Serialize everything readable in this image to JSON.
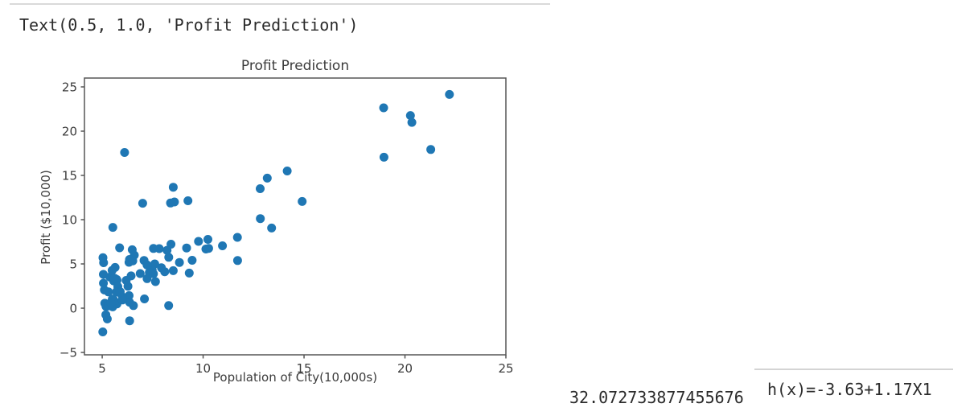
{
  "notebook": {
    "output_text": "Text(0.5, 1.0, 'Profit Prediction')",
    "cost_value": "32.072733877455676",
    "hypothesis_text": "h(x)=-3.63+1.17X1"
  },
  "chart_data": {
    "type": "scatter",
    "title": "Profit Prediction",
    "xlabel": "Population of City(10,000s)",
    "ylabel": "Profit ($10,000)",
    "xlim": [
      4.12,
      25.0
    ],
    "ylim": [
      -5.27,
      26.0
    ],
    "xticks": [
      5,
      10,
      15,
      20,
      25
    ],
    "yticks": [
      25,
      20,
      15,
      10,
      5,
      0,
      -5
    ],
    "grid": false,
    "legend": null,
    "marker_color": "#1f77b4",
    "marker_radius": 5.5,
    "spine_color": "#565656",
    "points": [
      [
        6.1101,
        17.592
      ],
      [
        5.5277,
        9.1302
      ],
      [
        8.5186,
        13.662
      ],
      [
        7.0032,
        11.854
      ],
      [
        5.8598,
        6.8233
      ],
      [
        8.3829,
        11.886
      ],
      [
        7.4764,
        4.3483
      ],
      [
        8.5781,
        12.0
      ],
      [
        6.4862,
        6.5987
      ],
      [
        5.0546,
        3.8166
      ],
      [
        5.7107,
        3.2522
      ],
      [
        14.164,
        15.505
      ],
      [
        5.734,
        3.1551
      ],
      [
        8.4084,
        7.2258
      ],
      [
        5.6407,
        0.71618
      ],
      [
        5.3794,
        3.5129
      ],
      [
        6.3654,
        5.3048
      ],
      [
        5.1301,
        0.56077
      ],
      [
        6.4296,
        3.6518
      ],
      [
        7.0708,
        5.3893
      ],
      [
        6.1891,
        3.1386
      ],
      [
        20.27,
        21.767
      ],
      [
        5.4901,
        4.263
      ],
      [
        6.3261,
        5.1875
      ],
      [
        5.5649,
        3.0825
      ],
      [
        18.945,
        22.638
      ],
      [
        12.828,
        13.501
      ],
      [
        10.957,
        7.0467
      ],
      [
        13.176,
        14.692
      ],
      [
        22.203,
        24.147
      ],
      [
        5.2524,
        -1.22
      ],
      [
        6.5894,
        5.9966
      ],
      [
        9.2482,
        12.134
      ],
      [
        5.8918,
        1.8495
      ],
      [
        8.2111,
        6.5426
      ],
      [
        7.9334,
        4.5623
      ],
      [
        8.0959,
        4.1164
      ],
      [
        5.6063,
        3.3928
      ],
      [
        12.836,
        10.117
      ],
      [
        6.3534,
        5.4974
      ],
      [
        5.4069,
        0.55657
      ],
      [
        6.8825,
        3.9115
      ],
      [
        11.708,
        5.3854
      ],
      [
        5.7737,
        2.4406
      ],
      [
        7.8247,
        6.7318
      ],
      [
        7.0931,
        1.0463
      ],
      [
        5.0702,
        5.1337
      ],
      [
        5.8014,
        1.844
      ],
      [
        11.7,
        8.0043
      ],
      [
        5.5416,
        1.0179
      ],
      [
        7.5402,
        6.7504
      ],
      [
        5.3077,
        1.8396
      ],
      [
        7.4239,
        4.2885
      ],
      [
        7.6031,
        4.9981
      ],
      [
        6.3328,
        1.4233
      ],
      [
        6.3589,
        -1.4211
      ],
      [
        6.2742,
        2.4756
      ],
      [
        5.6397,
        4.6042
      ],
      [
        9.3102,
        3.9624
      ],
      [
        9.4536,
        5.4141
      ],
      [
        8.8254,
        5.1694
      ],
      [
        5.1793,
        -0.74279
      ],
      [
        21.279,
        17.929
      ],
      [
        14.908,
        12.054
      ],
      [
        18.959,
        17.054
      ],
      [
        7.2182,
        4.8852
      ],
      [
        8.2951,
        5.7442
      ],
      [
        10.236,
        7.7754
      ],
      [
        5.4994,
        1.0173
      ],
      [
        20.341,
        20.992
      ],
      [
        10.136,
        6.6799
      ],
      [
        7.3345,
        4.0259
      ],
      [
        6.0062,
        1.2784
      ],
      [
        7.2259,
        3.3411
      ],
      [
        5.0269,
        -2.6807
      ],
      [
        6.5479,
        0.29678
      ],
      [
        7.5386,
        3.8845
      ],
      [
        5.0365,
        5.7014
      ],
      [
        10.274,
        6.7526
      ],
      [
        5.1077,
        2.0576
      ],
      [
        5.7292,
        0.47953
      ],
      [
        5.1884,
        0.20421
      ],
      [
        6.3557,
        0.67861
      ],
      [
        9.7687,
        7.5435
      ],
      [
        6.5159,
        5.3436
      ],
      [
        8.5172,
        4.2415
      ],
      [
        9.1802,
        6.7981
      ],
      [
        6.002,
        0.92695
      ],
      [
        5.5204,
        0.152
      ],
      [
        5.0594,
        2.8214
      ],
      [
        5.7077,
        1.8451
      ],
      [
        7.6366,
        2.9981
      ],
      [
        5.8707,
        1.7346
      ],
      [
        5.3054,
        0.2523
      ],
      [
        8.2934,
        0.29705
      ],
      [
        13.394,
        9.0551
      ],
      [
        5.4369,
        0.61705
      ]
    ]
  }
}
